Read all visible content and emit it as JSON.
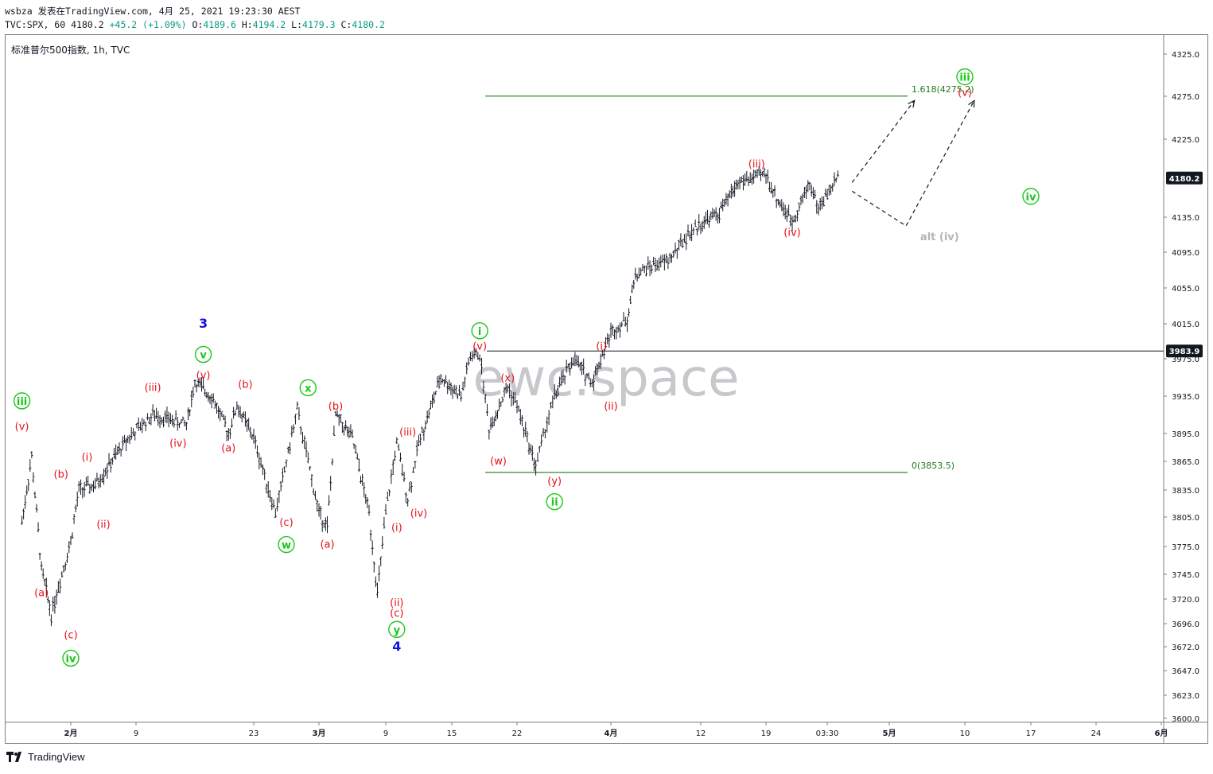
{
  "header": {
    "line1": "wsbza 发表在TradingView.com, 4月 25, 2021 19:23:30 AEST",
    "symbol": "TVC:SPX, 60",
    "last": "4180.2",
    "change": "+45.2 (+1.09%)",
    "o_label": "O:",
    "o_val": "4189.6",
    "h_label": "H:",
    "h_val": "4194.2",
    "l_label": "L:",
    "l_val": "4179.3",
    "c_label": "C:",
    "c_val": "4180.2"
  },
  "legend_title": "标准普尔500指数, 1h, TVC",
  "watermark": "ewc.space",
  "footer_brand": "TradingView",
  "colors": {
    "bars": "#131722",
    "wave_red": "#e8101a",
    "wave_green": "#18c818",
    "wave_blue": "#1010e0",
    "fib_line": "#1d7a1d",
    "alt_label": "#b4b4bc",
    "price_tag_bg": "#131722"
  },
  "chart_data": {
    "type": "line",
    "title": "标准普尔500指数, 1h, TVC",
    "ylim": [
      3600,
      4335
    ],
    "y_ticks": [
      {
        "v": 4325.0,
        "label": "4325.0"
      },
      {
        "v": 4275.0,
        "label": "4275.0"
      },
      {
        "v": 4225.0,
        "label": "4225.0"
      },
      {
        "v": 4135.0,
        "label": "4135.0"
      },
      {
        "v": 4095.0,
        "label": "4095.0"
      },
      {
        "v": 4055.0,
        "label": "4055.0"
      },
      {
        "v": 4015.0,
        "label": "4015.0"
      },
      {
        "v": 3975.0,
        "label": "3975.0"
      },
      {
        "v": 3935.0,
        "label": "3935.0"
      },
      {
        "v": 3895.0,
        "label": "3895.0"
      },
      {
        "v": 3865.0,
        "label": "3865.0"
      },
      {
        "v": 3835.0,
        "label": "3835.0"
      },
      {
        "v": 3805.0,
        "label": "3805.0"
      },
      {
        "v": 3775.0,
        "label": "3775.0"
      },
      {
        "v": 3745.0,
        "label": "3745.0"
      },
      {
        "v": 3720.0,
        "label": "3720.0"
      },
      {
        "v": 3696.0,
        "label": "3696.0"
      },
      {
        "v": 3672.0,
        "label": "3672.0"
      },
      {
        "v": 3647.0,
        "label": "3647.0"
      },
      {
        "v": 3623.0,
        "label": "3623.0"
      },
      {
        "v": 3600.0,
        "label": "3600.0"
      }
    ],
    "x_ticks": [
      {
        "label": "2月",
        "bold": true
      },
      {
        "label": "9"
      },
      {
        "label": "23"
      },
      {
        "label": "3月",
        "bold": true
      },
      {
        "label": "9"
      },
      {
        "label": "15"
      },
      {
        "label": "22"
      },
      {
        "label": "4月",
        "bold": true
      },
      {
        "label": "12"
      },
      {
        "label": "19"
      },
      {
        "label": "03:30"
      },
      {
        "label": "5月",
        "bold": true
      },
      {
        "label": "10"
      },
      {
        "label": "17"
      },
      {
        "label": "24"
      },
      {
        "label": "6月",
        "bold": true
      }
    ],
    "price_tags": [
      {
        "label": "4180.2",
        "v": 4180.2
      },
      {
        "label": "3983.9",
        "v": 3983.9
      }
    ],
    "horizontal_line": {
      "v": 3983.9
    },
    "fib_levels": [
      {
        "label": "1.618(4275.2)",
        "v": 4275.2
      },
      {
        "label": "0(3853.5)",
        "v": 3853.5
      }
    ],
    "series": [
      {
        "values": [
          {
            "t": "2021-01-27",
            "v": 3800
          },
          {
            "t": "2021-01-28",
            "v": 3870
          },
          {
            "t": "2021-01-29",
            "v": 3750
          },
          {
            "t": "2021-01-30",
            "v": 3705
          },
          {
            "t": "2021-02-01",
            "v": 3780
          },
          {
            "t": "2021-02-02",
            "v": 3835
          },
          {
            "t": "2021-02-04",
            "v": 3840
          },
          {
            "t": "2021-02-08",
            "v": 3890
          },
          {
            "t": "2021-02-11",
            "v": 3915
          },
          {
            "t": "2021-02-15",
            "v": 3905
          },
          {
            "t": "2021-02-16",
            "v": 3950
          },
          {
            "t": "2021-02-18",
            "v": 3935
          },
          {
            "t": "2021-02-20",
            "v": 3895
          },
          {
            "t": "2021-02-21",
            "v": 3925
          },
          {
            "t": "2021-02-23",
            "v": 3890
          },
          {
            "t": "2021-02-25",
            "v": 3810
          },
          {
            "t": "2021-02-27",
            "v": 3920
          },
          {
            "t": "2021-03-01",
            "v": 3810
          },
          {
            "t": "2021-03-02",
            "v": 3795
          },
          {
            "t": "2021-03-03",
            "v": 3915
          },
          {
            "t": "2021-03-05",
            "v": 3890
          },
          {
            "t": "2021-03-07",
            "v": 3810
          },
          {
            "t": "2021-03-08",
            "v": 3725
          },
          {
            "t": "2021-03-09",
            "v": 3810
          },
          {
            "t": "2021-03-10",
            "v": 3885
          },
          {
            "t": "2021-03-11",
            "v": 3825
          },
          {
            "t": "2021-03-12",
            "v": 3885
          },
          {
            "t": "2021-03-14",
            "v": 3955
          },
          {
            "t": "2021-03-16",
            "v": 3935
          },
          {
            "t": "2021-03-17",
            "v": 3978
          },
          {
            "t": "2021-03-18",
            "v": 3980
          },
          {
            "t": "2021-03-19",
            "v": 3900
          },
          {
            "t": "2021-03-21",
            "v": 3945
          },
          {
            "t": "2021-03-22",
            "v": 3925
          },
          {
            "t": "2021-03-24",
            "v": 3860
          },
          {
            "t": "2021-03-25",
            "v": 3900
          },
          {
            "t": "2021-03-26",
            "v": 3935
          },
          {
            "t": "2021-03-28",
            "v": 3975
          },
          {
            "t": "2021-03-30",
            "v": 3950
          },
          {
            "t": "2021-04-01",
            "v": 4005
          },
          {
            "t": "2021-04-03",
            "v": 4020
          },
          {
            "t": "2021-04-04",
            "v": 4070
          },
          {
            "t": "2021-04-06",
            "v": 4080
          },
          {
            "t": "2021-04-08",
            "v": 4085
          },
          {
            "t": "2021-04-10",
            "v": 4110
          },
          {
            "t": "2021-04-12",
            "v": 4128
          },
          {
            "t": "2021-04-14",
            "v": 4140
          },
          {
            "t": "2021-04-16",
            "v": 4175
          },
          {
            "t": "2021-04-19",
            "v": 4185
          },
          {
            "t": "2021-04-20",
            "v": 4160
          },
          {
            "t": "2021-04-22",
            "v": 4130
          },
          {
            "t": "2021-04-24",
            "v": 4175
          },
          {
            "t": "2021-04-25",
            "v": 4145
          },
          {
            "t": "2021-04-27",
            "v": 4185
          }
        ]
      }
    ],
    "projections": [
      {
        "style": "dashed-arrow",
        "points": [
          {
            "t": "2021-04-28",
            "v": 4175
          },
          {
            "t": "2021-05-04",
            "v": 4270
          }
        ]
      },
      {
        "style": "dashed-arrow",
        "points": [
          {
            "t": "2021-04-28",
            "v": 4165
          },
          {
            "t": "2021-05-03",
            "v": 4125
          },
          {
            "t": "2021-05-11",
            "v": 4270
          }
        ]
      }
    ],
    "wave_labels": [
      {
        "text": "iii",
        "t": "2021-01-27",
        "v": 3930,
        "color": "green",
        "circle": true
      },
      {
        "text": "(v)",
        "t": "2021-01-27",
        "v": 3903,
        "color": "red"
      },
      {
        "text": "(b)",
        "t": "2021-01-31",
        "v": 3852,
        "color": "red"
      },
      {
        "text": "(a)",
        "t": "2021-01-29",
        "v": 3727,
        "color": "red"
      },
      {
        "text": "(c)",
        "t": "2021-02-01",
        "v": 3685,
        "color": "red"
      },
      {
        "text": "iv",
        "t": "2021-02-01",
        "v": 3660,
        "color": "green",
        "circle": true
      },
      {
        "text": "(i)",
        "t": "2021-02-03",
        "v": 3870,
        "color": "red"
      },
      {
        "text": "(ii)",
        "t": "2021-02-05",
        "v": 3798,
        "color": "red"
      },
      {
        "text": "(iii)",
        "t": "2021-02-11",
        "v": 3945,
        "color": "red"
      },
      {
        "text": "(iv)",
        "t": "2021-02-14",
        "v": 3885,
        "color": "red"
      },
      {
        "text": "3",
        "t": "2021-02-17",
        "v": 4015,
        "color": "blue"
      },
      {
        "text": "v",
        "t": "2021-02-17",
        "v": 3980,
        "color": "green",
        "circle": true
      },
      {
        "text": "(v)",
        "t": "2021-02-17",
        "v": 3958,
        "color": "red"
      },
      {
        "text": "(b)",
        "t": "2021-02-22",
        "v": 3948,
        "color": "red"
      },
      {
        "text": "(a)",
        "t": "2021-02-20",
        "v": 3880,
        "color": "red"
      },
      {
        "text": "(c)",
        "t": "2021-02-26",
        "v": 3800,
        "color": "red"
      },
      {
        "text": "w",
        "t": "2021-02-26",
        "v": 3777,
        "color": "green",
        "circle": true
      },
      {
        "text": "x",
        "t": "2021-02-28",
        "v": 3944,
        "color": "green",
        "circle": true
      },
      {
        "text": "(b)",
        "t": "2021-03-03",
        "v": 3925,
        "color": "red"
      },
      {
        "text": "(a)",
        "t": "2021-03-02",
        "v": 3778,
        "color": "red"
      },
      {
        "text": "(iii)",
        "t": "2021-03-11",
        "v": 3897,
        "color": "red"
      },
      {
        "text": "(iv)",
        "t": "2021-03-12",
        "v": 3810,
        "color": "red"
      },
      {
        "text": "(i)",
        "t": "2021-03-10",
        "v": 3795,
        "color": "red"
      },
      {
        "text": "(ii)",
        "t": "2021-03-10",
        "v": 3717,
        "color": "red"
      },
      {
        "text": "(c)",
        "t": "2021-03-10",
        "v": 3707,
        "color": "red"
      },
      {
        "text": "y",
        "t": "2021-03-10",
        "v": 3690,
        "color": "green",
        "circle": true
      },
      {
        "text": "4",
        "t": "2021-03-10",
        "v": 3672,
        "color": "blue"
      },
      {
        "text": "i",
        "t": "2021-03-18",
        "v": 4007,
        "color": "green",
        "circle": true
      },
      {
        "text": "(v)",
        "t": "2021-03-18",
        "v": 3990,
        "color": "red"
      },
      {
        "text": "(x)",
        "t": "2021-03-21",
        "v": 3955,
        "color": "red"
      },
      {
        "text": "(w)",
        "t": "2021-03-20",
        "v": 3866,
        "color": "red"
      },
      {
        "text": "(y)",
        "t": "2021-03-26",
        "v": 3845,
        "color": "red"
      },
      {
        "text": "ii",
        "t": "2021-03-26",
        "v": 3822,
        "color": "green",
        "circle": true
      },
      {
        "text": "(i)",
        "t": "2021-03-31",
        "v": 3990,
        "color": "red"
      },
      {
        "text": "(ii)",
        "t": "2021-04-01",
        "v": 3925,
        "color": "red"
      },
      {
        "text": "(iii)",
        "t": "2021-04-18",
        "v": 4197,
        "color": "red"
      },
      {
        "text": "(iv)",
        "t": "2021-04-22",
        "v": 4118,
        "color": "red"
      },
      {
        "text": "iii",
        "t": "2021-05-10",
        "v": 4298,
        "color": "green",
        "circle": true
      },
      {
        "text": "(v)",
        "t": "2021-05-10",
        "v": 4280,
        "color": "red"
      },
      {
        "text": "alt (iv)",
        "t": "2021-05-07",
        "v": 4113,
        "color": "gray"
      },
      {
        "text": "iv",
        "t": "2021-05-17",
        "v": 4159,
        "color": "green",
        "circle": true
      }
    ]
  }
}
